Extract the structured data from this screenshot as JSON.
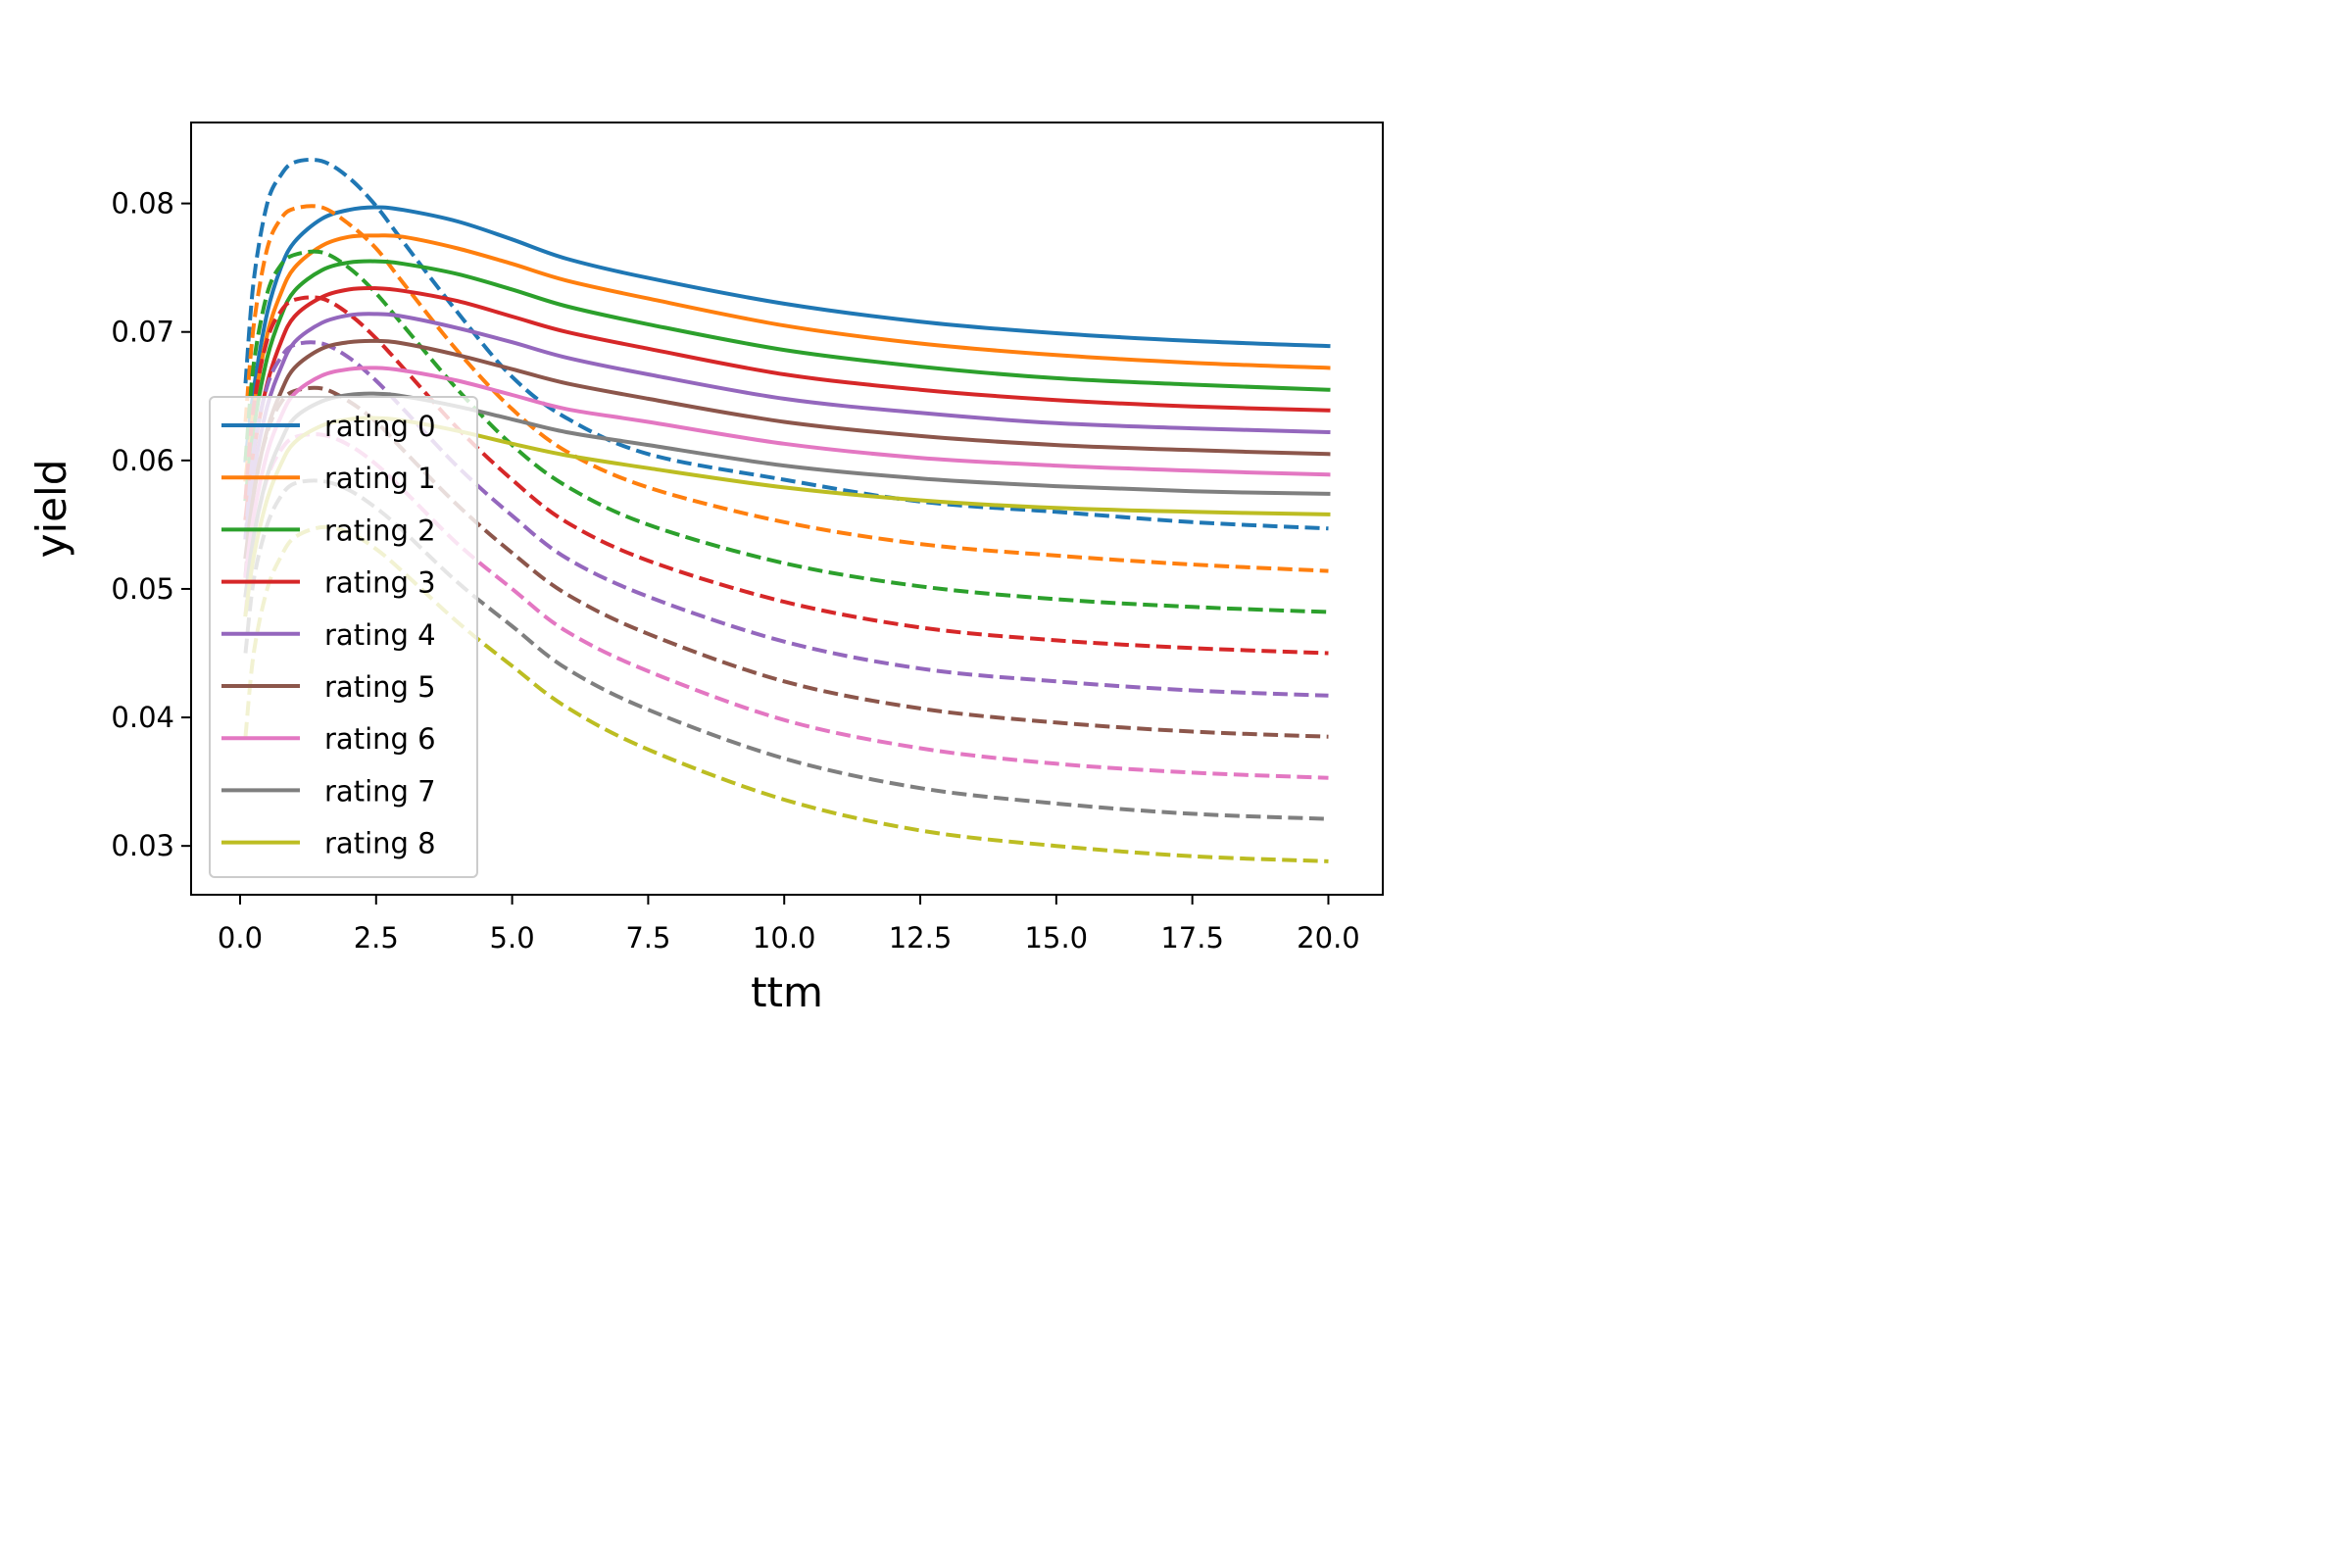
{
  "chart_data": {
    "type": "line",
    "title": "",
    "xlabel": "ttm",
    "ylabel": "yield",
    "xlim": [
      -0.9,
      21.0
    ],
    "ylim": [
      0.0262,
      0.0863
    ],
    "xticks": [
      0.0,
      2.5,
      5.0,
      7.5,
      10.0,
      12.5,
      15.0,
      17.5,
      20.0
    ],
    "xtick_labels": [
      "0.0",
      "2.5",
      "5.0",
      "7.5",
      "10.0",
      "12.5",
      "15.0",
      "17.5",
      "20.0"
    ],
    "yticks": [
      0.03,
      0.04,
      0.05,
      0.06,
      0.07,
      0.08
    ],
    "ytick_labels": [
      "0.03",
      "0.04",
      "0.05",
      "0.06",
      "0.07",
      "0.08"
    ],
    "grid": false,
    "legend_position": "lower-left",
    "x": [
      0.1,
      0.25,
      0.5,
      0.75,
      1.0,
      1.5,
      2.0,
      2.5,
      3.0,
      4.0,
      5.0,
      6.0,
      7.5,
      10.0,
      12.5,
      15.0,
      17.5,
      20.0
    ],
    "series": [
      {
        "name": "rating 0",
        "color": "#1f77b4",
        "linestyle": "solid",
        "values": [
          0.06,
          0.0655,
          0.0715,
          0.075,
          0.077,
          0.0788,
          0.0795,
          0.0797,
          0.0795,
          0.0786,
          0.0772,
          0.0757,
          0.0742,
          0.0722,
          0.0708,
          0.0699,
          0.0693,
          0.0689
        ]
      },
      {
        "name": "",
        "color": "#1f77b4",
        "linestyle": "dashed",
        "values": [
          0.066,
          0.074,
          0.08,
          0.0822,
          0.0832,
          0.0833,
          0.082,
          0.0798,
          0.077,
          0.0715,
          0.0665,
          0.0633,
          0.0605,
          0.0585,
          0.0568,
          0.056,
          0.0552,
          0.0547
        ]
      },
      {
        "name": "rating 1",
        "color": "#ff7f0e",
        "linestyle": "solid",
        "values": [
          0.0585,
          0.064,
          0.0698,
          0.073,
          0.075,
          0.0767,
          0.0774,
          0.0775,
          0.0774,
          0.0765,
          0.0753,
          0.074,
          0.0726,
          0.0705,
          0.0691,
          0.0682,
          0.0676,
          0.0672
        ]
      },
      {
        "name": "",
        "color": "#ff7f0e",
        "linestyle": "dashed",
        "values": [
          0.063,
          0.0705,
          0.0765,
          0.0788,
          0.0796,
          0.0797,
          0.0784,
          0.0765,
          0.0738,
          0.0685,
          0.064,
          0.0607,
          0.0579,
          0.0552,
          0.0535,
          0.0526,
          0.0519,
          0.0514
        ]
      },
      {
        "name": "rating 2",
        "color": "#2ca02c",
        "linestyle": "solid",
        "values": [
          0.057,
          0.0625,
          0.068,
          0.0712,
          0.0732,
          0.0748,
          0.0754,
          0.0755,
          0.0753,
          0.0745,
          0.0733,
          0.072,
          0.0706,
          0.0686,
          0.0673,
          0.0664,
          0.0659,
          0.0655
        ]
      },
      {
        "name": "",
        "color": "#2ca02c",
        "linestyle": "dashed",
        "values": [
          0.06,
          0.0675,
          0.073,
          0.0752,
          0.076,
          0.0762,
          0.075,
          0.073,
          0.0705,
          0.0655,
          0.0612,
          0.058,
          0.055,
          0.052,
          0.0502,
          0.0492,
          0.0486,
          0.0482
        ]
      },
      {
        "name": "rating 3",
        "color": "#d62728",
        "linestyle": "solid",
        "values": [
          0.0555,
          0.0607,
          0.066,
          0.0692,
          0.0712,
          0.0727,
          0.0733,
          0.0734,
          0.0732,
          0.0724,
          0.0712,
          0.07,
          0.0687,
          0.0667,
          0.0655,
          0.0647,
          0.0642,
          0.0639
        ]
      },
      {
        "name": "",
        "color": "#d62728",
        "linestyle": "dashed",
        "values": [
          0.057,
          0.0642,
          0.0694,
          0.0716,
          0.0725,
          0.0726,
          0.0714,
          0.0695,
          0.0672,
          0.0625,
          0.0585,
          0.0552,
          0.0522,
          0.049,
          0.047,
          0.046,
          0.0454,
          0.045
        ]
      },
      {
        "name": "rating 4",
        "color": "#9467bd",
        "linestyle": "solid",
        "values": [
          0.054,
          0.059,
          0.0642,
          0.0672,
          0.0692,
          0.0707,
          0.0713,
          0.0714,
          0.0712,
          0.0703,
          0.0692,
          0.068,
          0.0667,
          0.0648,
          0.0637,
          0.0629,
          0.0625,
          0.0622
        ]
      },
      {
        "name": "",
        "color": "#9467bd",
        "linestyle": "dashed",
        "values": [
          0.054,
          0.0608,
          0.0658,
          0.068,
          0.069,
          0.0691,
          0.068,
          0.0662,
          0.064,
          0.0595,
          0.0557,
          0.0524,
          0.0494,
          0.0459,
          0.0438,
          0.0428,
          0.0421,
          0.0417
        ]
      },
      {
        "name": "rating 5",
        "color": "#8c564b",
        "linestyle": "solid",
        "values": [
          0.0525,
          0.0574,
          0.0624,
          0.0653,
          0.0672,
          0.0687,
          0.0692,
          0.0693,
          0.0691,
          0.0682,
          0.0671,
          0.066,
          0.0648,
          0.063,
          0.0619,
          0.0612,
          0.0608,
          0.0605
        ]
      },
      {
        "name": "",
        "color": "#8c564b",
        "linestyle": "dashed",
        "values": [
          0.051,
          0.0575,
          0.0622,
          0.0645,
          0.0654,
          0.0656,
          0.0646,
          0.063,
          0.0608,
          0.0565,
          0.0528,
          0.0496,
          0.0465,
          0.0428,
          0.0407,
          0.0396,
          0.0389,
          0.0385
        ]
      },
      {
        "name": "rating 6",
        "color": "#e377c2",
        "linestyle": "solid",
        "values": [
          0.051,
          0.0557,
          0.0606,
          0.0634,
          0.0652,
          0.0666,
          0.0671,
          0.0672,
          0.067,
          0.0662,
          0.0651,
          0.064,
          0.063,
          0.0613,
          0.0602,
          0.0596,
          0.0592,
          0.0589
        ]
      },
      {
        "name": "",
        "color": "#e377c2",
        "linestyle": "dashed",
        "values": [
          0.048,
          0.054,
          0.0586,
          0.0608,
          0.0618,
          0.062,
          0.0612,
          0.0597,
          0.0577,
          0.0535,
          0.05,
          0.0467,
          0.0436,
          0.0398,
          0.0376,
          0.0364,
          0.0357,
          0.0353
        ]
      },
      {
        "name": "rating 7",
        "color": "#7f7f7f",
        "linestyle": "solid",
        "values": [
          0.0495,
          0.0541,
          0.0588,
          0.0615,
          0.0633,
          0.0646,
          0.0651,
          0.0652,
          0.065,
          0.0642,
          0.0632,
          0.0622,
          0.0612,
          0.0596,
          0.0586,
          0.058,
          0.0576,
          0.0574
        ]
      },
      {
        "name": "",
        "color": "#7f7f7f",
        "linestyle": "dashed",
        "values": [
          0.045,
          0.0507,
          0.055,
          0.0572,
          0.0582,
          0.0584,
          0.0577,
          0.0563,
          0.0545,
          0.0505,
          0.0471,
          0.0438,
          0.0406,
          0.0368,
          0.0345,
          0.0333,
          0.0325,
          0.0321
        ]
      },
      {
        "name": "rating 8",
        "color": "#bcbd22",
        "linestyle": "solid",
        "values": [
          0.048,
          0.0525,
          0.057,
          0.0597,
          0.0614,
          0.0627,
          0.0632,
          0.0633,
          0.0631,
          0.0623,
          0.0613,
          0.0604,
          0.0594,
          0.0579,
          0.0569,
          0.0563,
          0.056,
          0.0558
        ]
      },
      {
        "name": "",
        "color": "#bcbd22",
        "linestyle": "dashed",
        "values": [
          0.0385,
          0.045,
          0.05,
          0.0525,
          0.054,
          0.0548,
          0.0544,
          0.0531,
          0.0513,
          0.0474,
          0.044,
          0.0408,
          0.0375,
          0.0336,
          0.0312,
          0.03,
          0.0292,
          0.0288
        ]
      }
    ]
  }
}
